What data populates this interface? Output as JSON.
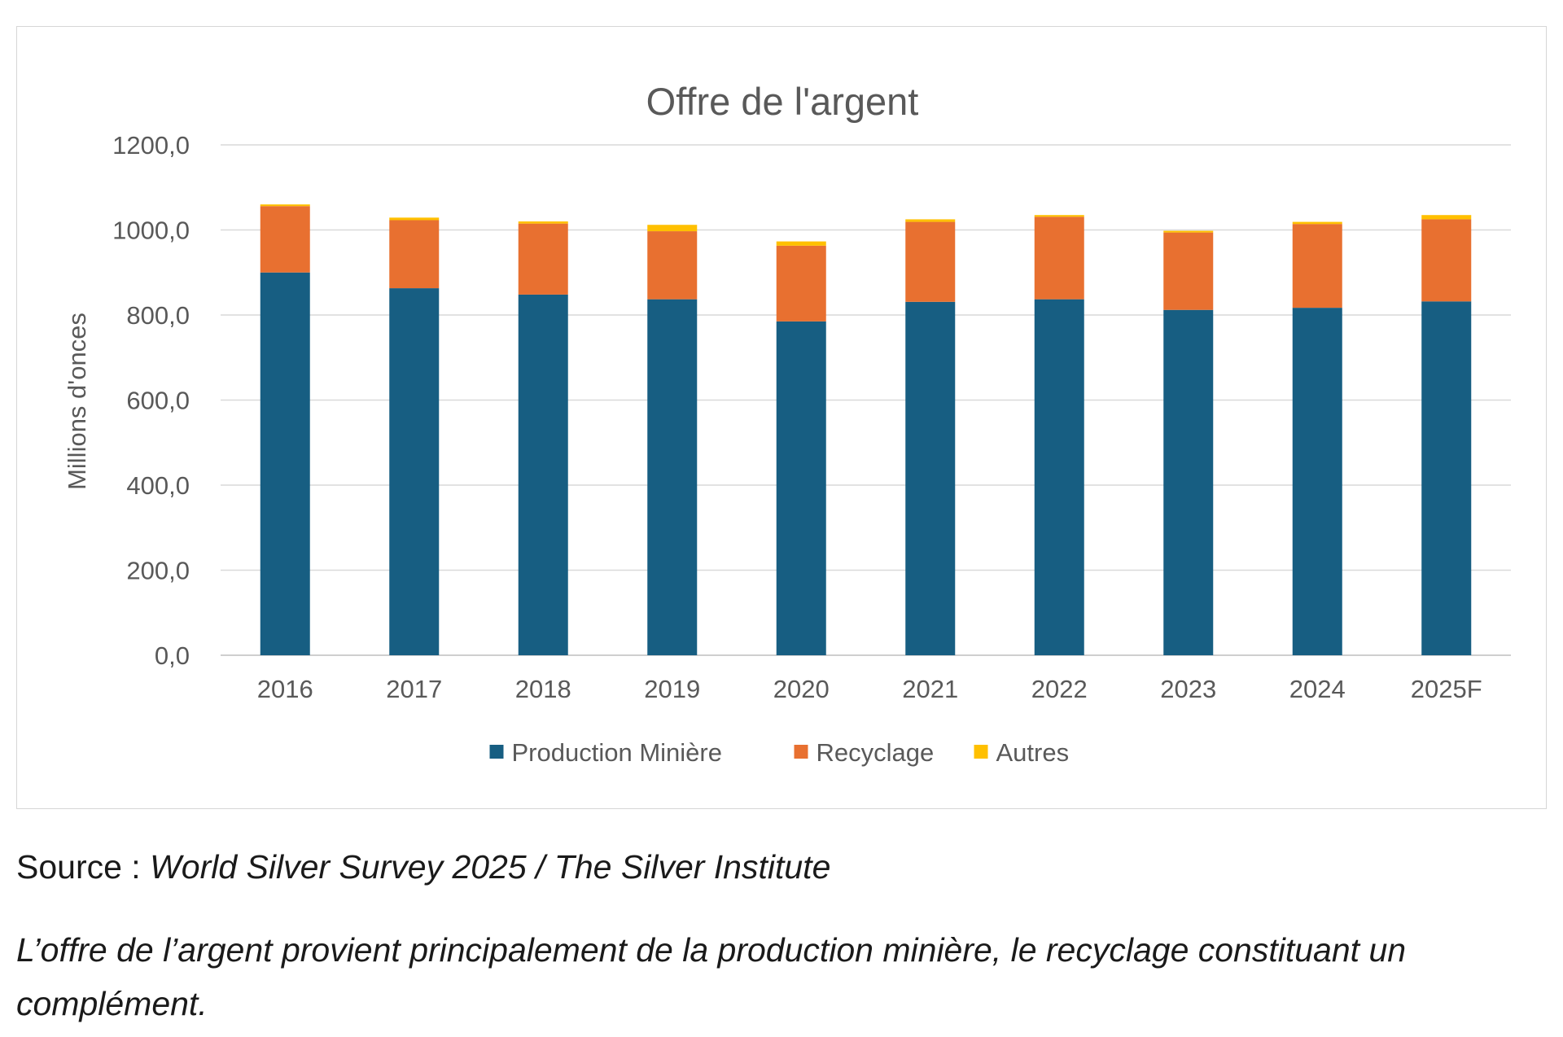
{
  "chart_data": {
    "type": "bar",
    "stacked": true,
    "title": "Offre de l'argent",
    "xlabel": "",
    "ylabel": "Millions d'onces",
    "ylim": [
      0,
      1200
    ],
    "yticks": [
      "0,0",
      "200,0",
      "400,0",
      "600,0",
      "800,0",
      "1000,0",
      "1200,0"
    ],
    "grid": true,
    "legend_position": "bottom",
    "categories": [
      "2016",
      "2017",
      "2018",
      "2019",
      "2020",
      "2021",
      "2022",
      "2023",
      "2024",
      "2025F"
    ],
    "series": [
      {
        "name": "Production Minière",
        "color": "#175e82",
        "values": [
          900,
          863,
          848,
          837,
          785,
          831,
          837,
          812,
          817,
          832
        ]
      },
      {
        "name": "Recyclage",
        "color": "#e87030",
        "values": [
          156,
          160,
          167,
          160,
          178,
          188,
          194,
          182,
          197,
          193
        ]
      },
      {
        "name": "Autres",
        "color": "#ffc000",
        "values": [
          4,
          6,
          5,
          15,
          10,
          6,
          4,
          4,
          5,
          10
        ]
      }
    ]
  },
  "source": {
    "prefix": "Source : ",
    "title": "World Silver Survey 2025 / The Silver Institute"
  },
  "description": "L’offre de l’argent provient principalement de la production minière, le recyclage constituant un complément."
}
